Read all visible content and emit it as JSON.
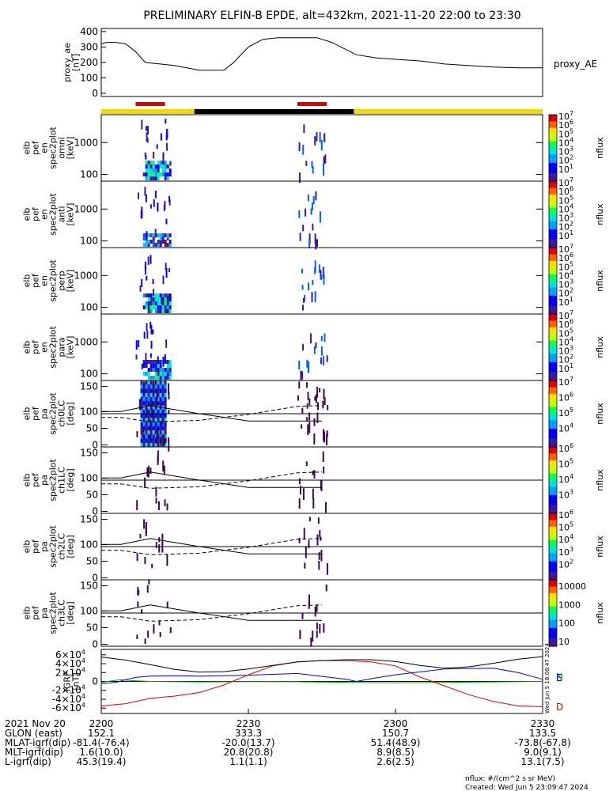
{
  "chart_data": {
    "type": "line",
    "title": "PRELIMINARY ELFIN-B EPDE, alt=432km, 2021-11-20 22:00 to 23:30",
    "time_range_minutes": [
      0,
      90
    ],
    "tracer_bar": {
      "colors": {
        "normal": "#f5d800",
        "eclipse": "#000000",
        "science": "#e00000"
      },
      "eclipse": [
        19,
        51.5
      ],
      "science_zones": [
        [
          7,
          13
        ],
        [
          40,
          46
        ]
      ]
    },
    "panels": [
      {
        "id": "proxy_ae",
        "kind": "line",
        "ylabel": [
          "proxy_ae",
          "[nT]"
        ],
        "right_label": "proxy_AE",
        "ylim": [
          0,
          420
        ],
        "yticks": [
          "0",
          "100",
          "200",
          "300",
          "400"
        ],
        "x": [
          0,
          1,
          3,
          5,
          7,
          9,
          12,
          15,
          20,
          25,
          27,
          30,
          33,
          36,
          40,
          44,
          47,
          52,
          56,
          60,
          65,
          70,
          75,
          80,
          85,
          90
        ],
        "y": [
          320,
          330,
          330,
          320,
          270,
          200,
          190,
          180,
          150,
          150,
          200,
          300,
          350,
          360,
          360,
          360,
          330,
          250,
          230,
          220,
          210,
          190,
          180,
          170,
          165,
          165
        ]
      },
      {
        "id": "omni",
        "kind": "spec",
        "ylabel": [
          "elb",
          "pef",
          "en",
          "spec2plot",
          "omni",
          "[keV]"
        ],
        "yticks": [
          "1000",
          "100"
        ],
        "cb_label": "nflux",
        "cb_max": "10",
        "cb_sup": [
          "7",
          "6",
          "5",
          "4",
          "3",
          "2",
          "1"
        ]
      },
      {
        "id": "anti",
        "kind": "spec",
        "ylabel": [
          "elb",
          "pef",
          "en",
          "spec2plot",
          "anti",
          "[keV]"
        ],
        "yticks": [
          "1000",
          "100"
        ],
        "cb_label": "nflux",
        "cb_max": "10",
        "cb_sup": [
          "7",
          "6",
          "5",
          "4",
          "3",
          "2",
          "1"
        ]
      },
      {
        "id": "perp",
        "kind": "spec",
        "ylabel": [
          "elb",
          "pef",
          "en",
          "spec2plot",
          "perp",
          "[keV]"
        ],
        "yticks": [
          "1000",
          "100"
        ],
        "cb_label": "nflux",
        "cb_max": "10",
        "cb_sup": [
          "7",
          "6",
          "5",
          "4",
          "3",
          "2",
          "1"
        ]
      },
      {
        "id": "para",
        "kind": "spec",
        "ylabel": [
          "elb",
          "pef",
          "en",
          "spec2plot",
          "para",
          "[keV]"
        ],
        "yticks": [
          "1000",
          "100"
        ],
        "cb_label": "nflux",
        "cb_max": "10",
        "cb_sup": [
          "7",
          "6",
          "5",
          "4",
          "3",
          "2",
          "1"
        ]
      },
      {
        "id": "ch0LC",
        "kind": "pa",
        "ylabel": [
          "elb",
          "pef",
          "pa",
          "spec2plot",
          "ch0LC",
          "[deg]"
        ],
        "yticks": [
          "150",
          "100",
          "50",
          "0"
        ],
        "cb_label": "nflux",
        "cb_max": "10",
        "cb_sup": [
          "7",
          "6",
          "5",
          "4"
        ]
      },
      {
        "id": "ch1LC",
        "kind": "pa",
        "ylabel": [
          "elb",
          "pef",
          "pa",
          "spec2plot",
          "ch1LC",
          "[deg]"
        ],
        "yticks": [
          "150",
          "100",
          "50",
          "0"
        ],
        "cb_label": "nflux",
        "cb_max": "10",
        "cb_sup": [
          "6",
          "5",
          "4",
          "3"
        ]
      },
      {
        "id": "ch2LC",
        "kind": "pa",
        "ylabel": [
          "elb",
          "pef",
          "pa",
          "spec2plot",
          "ch2LC",
          "[deg]"
        ],
        "yticks": [
          "150",
          "100",
          "50",
          "0"
        ],
        "cb_label": "nflux",
        "cb_max": "10",
        "cb_sup": [
          "6",
          "5",
          "4",
          "3",
          "2"
        ]
      },
      {
        "id": "ch3LC",
        "kind": "pa",
        "ylabel": [
          "elb",
          "pef",
          "pa",
          "spec2plot",
          "ch3LC",
          "[deg]"
        ],
        "yticks": [
          "150",
          "100",
          "50",
          "0"
        ],
        "cb_label": "nflux",
        "cb_labels": [
          "10000",
          "1000",
          "100",
          "10"
        ]
      },
      {
        "id": "igrf",
        "kind": "igrf",
        "ylabel": [
          "IGRF",
          "[nT]"
        ],
        "ylim": [
          -65000,
          65000
        ],
        "yticks": [
          [
            "6",
            ""
          ],
          [
            "4",
            ""
          ],
          [
            "2",
            ""
          ],
          [
            "0",
            "plain"
          ],
          [
            "2",
            "-"
          ],
          [
            "4",
            "-"
          ],
          [
            "6",
            "-"
          ]
        ],
        "series": [
          {
            "name": "N",
            "color": "#00b000",
            "x": [
              0,
              2,
              4,
              6,
              10,
              20,
              30,
              40,
              50,
              60,
              70,
              80,
              90
            ],
            "y": [
              -2000,
              1000,
              4000,
              2000,
              0,
              -1000,
              -500,
              -800,
              -2000,
              -3000,
              -2000,
              -1000,
              0
            ]
          },
          {
            "name": "E",
            "color": "#0000ff",
            "x": [
              0,
              3,
              5,
              7,
              10,
              15,
              20,
              30,
              40,
              50,
              52,
              56,
              60,
              70,
              80,
              85,
              90
            ],
            "y": [
              -5000,
              -2000,
              4000,
              9000,
              12000,
              13000,
              12000,
              14000,
              18000,
              5000,
              0,
              8000,
              15000,
              28000,
              30000,
              20000,
              5000
            ]
          },
          {
            "name": "D",
            "color": "#e00000",
            "x": [
              0,
              5,
              10,
              15,
              20,
              25,
              30,
              35,
              40,
              45,
              50,
              55,
              60,
              65,
              70,
              75,
              80,
              85,
              90
            ],
            "y": [
              -55000,
              -50000,
              -38000,
              -33000,
              -25000,
              -8000,
              15000,
              35000,
              44000,
              47000,
              47000,
              44000,
              35000,
              10000,
              -10000,
              -30000,
              -45000,
              -55000,
              -57000
            ]
          },
          {
            "name": "mag",
            "color": "#000000",
            "x": [
              0,
              5,
              10,
              15,
              20,
              25,
              30,
              35,
              40,
              45,
              50,
              55,
              60,
              65,
              70,
              75,
              80,
              85,
              90
            ],
            "y": [
              55000,
              48000,
              38000,
              27000,
              21000,
              22000,
              28000,
              36000,
              44000,
              47000,
              49000,
              49000,
              45000,
              36000,
              30000,
              33000,
              41000,
              50000,
              56000
            ]
          }
        ]
      }
    ],
    "x_ticks": [
      {
        "t": 0,
        "rows": [
          "2200",
          "152.1",
          "-81.4(-76.4)",
          "1.6(10.0)",
          "45.3(19.4)"
        ]
      },
      {
        "t": 30,
        "rows": [
          "2230",
          "333.3",
          "-20.0(13.7)",
          "20.8(20.8)",
          "1.1(1.1)"
        ]
      },
      {
        "t": 60,
        "rows": [
          "2300",
          "150.7",
          "51.4(48.9)",
          "8.9(8.5)",
          "2.6(2.5)"
        ]
      },
      {
        "t": 90,
        "rows": [
          "2330",
          "133.5",
          "-73.8(-67.8)",
          "9.0(9.1)",
          "13.1(7.5)"
        ]
      }
    ],
    "row_labels": [
      "2021 Nov 20",
      "GLON (east)",
      "MLAT-igrf(dip)",
      "MLT-igrf(dip)",
      "L-igrf(dip)"
    ],
    "legend": {
      "N": "N",
      "E": "E",
      "D": "D"
    },
    "right_side_label": "Wed Jun  5 18:08:47 2024",
    "footer": {
      "line1": "nflux: #/(cm^2 s sr MeV)",
      "line2": "Created: Wed Jun  5 23:09:47 2024"
    }
  }
}
